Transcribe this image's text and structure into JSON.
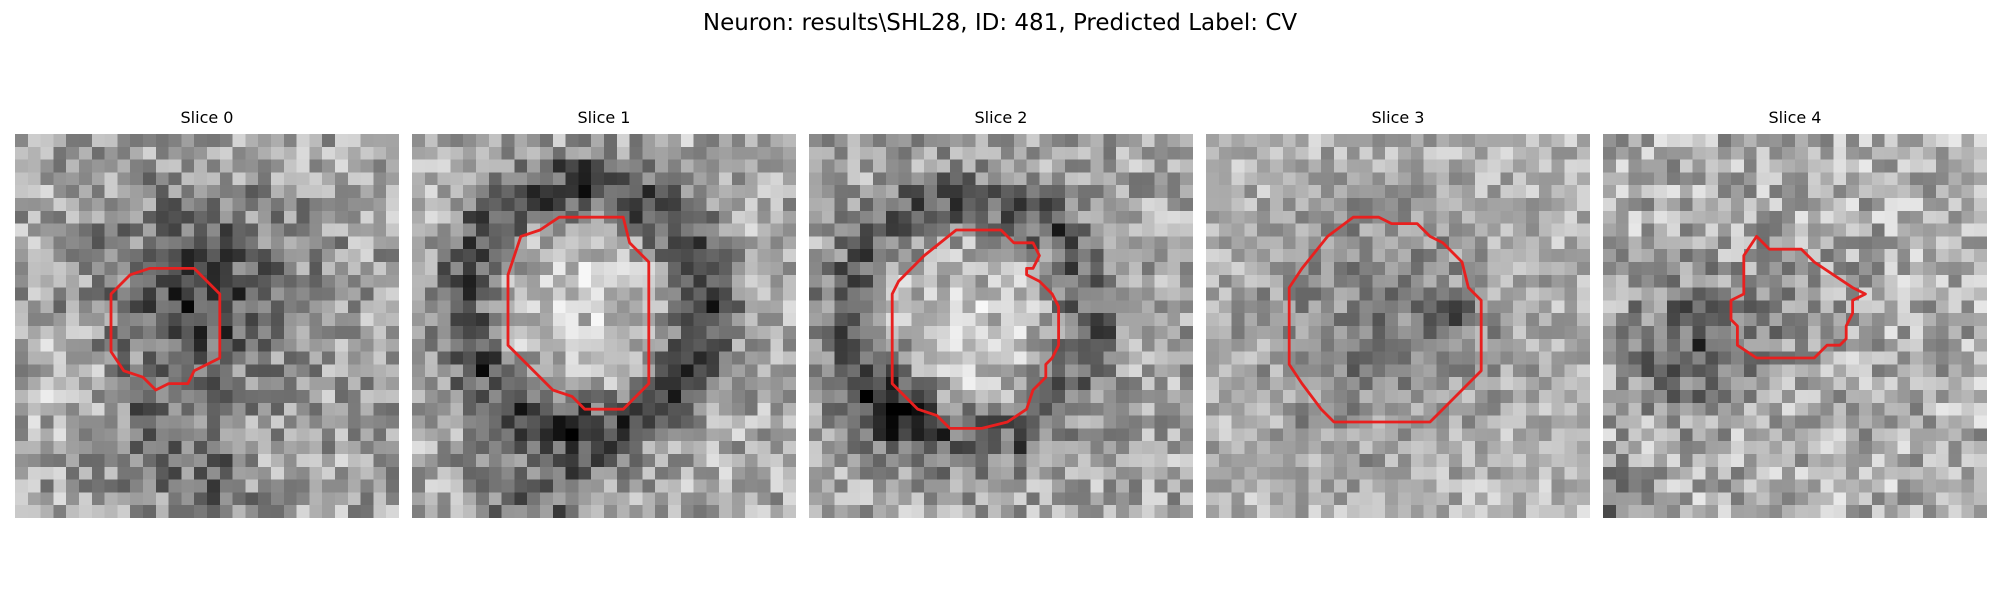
{
  "figure": {
    "title": "Neuron: results\\SHL28, ID: 481, Predicted Label: CV",
    "contour_color": "#e8201f"
  },
  "panels": [
    {
      "title": "Slice 0",
      "texture": {
        "seed": 11,
        "base": 165,
        "noise": 58
      },
      "blobs": [
        {
          "cx": 14.5,
          "cy": 12.5,
          "r": 5.5,
          "amp": 95,
          "ring": false
        },
        {
          "cx": 11.0,
          "cy": 23.5,
          "r": 3.0,
          "amp": 45,
          "ring": false
        },
        {
          "cx": 15.5,
          "cy": 27.5,
          "r": 2.0,
          "amp": 60,
          "ring": false
        },
        {
          "cx": 4.0,
          "cy": 19.0,
          "r": 2.5,
          "amp": -40,
          "ring": false
        }
      ],
      "contour": [
        [
          10.5,
          10.5
        ],
        [
          14.0,
          10.5
        ],
        [
          16.0,
          12.5
        ],
        [
          16.0,
          17.5
        ],
        [
          14.0,
          18.5
        ],
        [
          13.5,
          19.5
        ],
        [
          12.0,
          19.5
        ],
        [
          11.0,
          20.0
        ],
        [
          10.0,
          19.0
        ],
        [
          8.5,
          18.5
        ],
        [
          7.5,
          17.0
        ],
        [
          7.5,
          12.5
        ],
        [
          9.0,
          11.0
        ]
      ]
    },
    {
      "title": "Slice 1",
      "texture": {
        "seed": 23,
        "base": 170,
        "noise": 55
      },
      "blobs": [
        {
          "cx": 13.5,
          "cy": 13.5,
          "r": 9.5,
          "amp": 105,
          "ring": true,
          "width": 2.5
        },
        {
          "cx": 13.5,
          "cy": 13.5,
          "r": 6.0,
          "amp": -25,
          "ring": false
        },
        {
          "cx": 10.0,
          "cy": 28.0,
          "r": 3.5,
          "amp": 70,
          "ring": false
        }
      ],
      "contour": [
        [
          11.5,
          6.5
        ],
        [
          16.5,
          6.5
        ],
        [
          17.0,
          8.5
        ],
        [
          18.0,
          9.5
        ],
        [
          18.5,
          10.0
        ],
        [
          18.5,
          19.5
        ],
        [
          16.5,
          21.5
        ],
        [
          13.5,
          21.5
        ],
        [
          12.5,
          20.5
        ],
        [
          11.0,
          20.0
        ],
        [
          7.5,
          16.5
        ],
        [
          7.5,
          11.0
        ],
        [
          8.5,
          8.0
        ],
        [
          10.0,
          7.5
        ]
      ]
    },
    {
      "title": "Slice 2",
      "texture": {
        "seed": 37,
        "base": 165,
        "noise": 55
      },
      "blobs": [
        {
          "cx": 12.5,
          "cy": 14.5,
          "r": 9.5,
          "amp": 85,
          "ring": true,
          "width": 2.5
        },
        {
          "cx": 12.5,
          "cy": 15.0,
          "r": 6.5,
          "amp": -30,
          "ring": false
        },
        {
          "cx": 6.5,
          "cy": 21.0,
          "r": 2.5,
          "amp": 70,
          "ring": false
        }
      ],
      "contour": [
        [
          11.5,
          7.5
        ],
        [
          15.0,
          7.5
        ],
        [
          16.0,
          8.5
        ],
        [
          17.5,
          8.5
        ],
        [
          18.0,
          9.5
        ],
        [
          17.5,
          10.5
        ],
        [
          17.0,
          10.5
        ],
        [
          17.0,
          11.0
        ],
        [
          18.0,
          11.5
        ],
        [
          19.0,
          12.5
        ],
        [
          19.5,
          13.5
        ],
        [
          19.5,
          16.5
        ],
        [
          19.0,
          17.5
        ],
        [
          18.5,
          18.0
        ],
        [
          18.5,
          19.0
        ],
        [
          17.5,
          20.0
        ],
        [
          17.0,
          21.5
        ],
        [
          15.5,
          22.5
        ],
        [
          13.5,
          23.0
        ],
        [
          11.0,
          23.0
        ],
        [
          10.0,
          22.0
        ],
        [
          8.5,
          21.5
        ],
        [
          6.5,
          19.5
        ],
        [
          6.5,
          12.5
        ],
        [
          7.0,
          11.5
        ],
        [
          9.0,
          9.5
        ]
      ]
    },
    {
      "title": "Slice 3",
      "texture": {
        "seed": 51,
        "base": 185,
        "noise": 45
      },
      "blobs": [
        {
          "cx": 13.5,
          "cy": 15.0,
          "r": 7.5,
          "amp": 60,
          "ring": false
        },
        {
          "cx": 19.0,
          "cy": 14.0,
          "r": 1.0,
          "amp": 80,
          "ring": false
        }
      ],
      "contour": [
        [
          11.5,
          6.5
        ],
        [
          13.5,
          6.5
        ],
        [
          14.5,
          7.0
        ],
        [
          16.5,
          7.0
        ],
        [
          17.5,
          8.0
        ],
        [
          18.5,
          8.5
        ],
        [
          20.0,
          10.0
        ],
        [
          20.5,
          12.0
        ],
        [
          21.5,
          13.0
        ],
        [
          21.5,
          18.5
        ],
        [
          18.5,
          21.5
        ],
        [
          17.5,
          22.5
        ],
        [
          10.0,
          22.5
        ],
        [
          9.0,
          21.5
        ],
        [
          7.5,
          19.5
        ],
        [
          6.5,
          18.0
        ],
        [
          6.5,
          12.0
        ],
        [
          7.5,
          10.5
        ],
        [
          9.5,
          8.0
        ]
      ]
    },
    {
      "title": "Slice 4",
      "texture": {
        "seed": 67,
        "base": 175,
        "noise": 58
      },
      "blobs": [
        {
          "cx": 6.5,
          "cy": 16.5,
          "r": 3.5,
          "amp": 85,
          "ring": false
        },
        {
          "cx": 15.0,
          "cy": 13.0,
          "r": 3.5,
          "amp": 25,
          "ring": false
        },
        {
          "cx": 1.0,
          "cy": 28.0,
          "r": 1.5,
          "amp": 70,
          "ring": false
        }
      ],
      "contour": [
        [
          12.0,
          8.0
        ],
        [
          13.0,
          9.0
        ],
        [
          15.5,
          9.0
        ],
        [
          16.5,
          10.0
        ],
        [
          18.0,
          11.0
        ],
        [
          19.5,
          12.0
        ],
        [
          20.5,
          12.5
        ],
        [
          19.5,
          13.0
        ],
        [
          19.5,
          14.0
        ],
        [
          19.0,
          15.0
        ],
        [
          19.0,
          16.0
        ],
        [
          18.5,
          16.5
        ],
        [
          17.5,
          16.5
        ],
        [
          17.0,
          17.0
        ],
        [
          16.5,
          17.5
        ],
        [
          12.0,
          17.5
        ],
        [
          10.5,
          16.5
        ],
        [
          10.5,
          15.0
        ],
        [
          10.0,
          14.5
        ],
        [
          10.0,
          13.0
        ],
        [
          11.0,
          12.5
        ],
        [
          11.0,
          11.0
        ],
        [
          11.0,
          9.5
        ]
      ]
    }
  ]
}
